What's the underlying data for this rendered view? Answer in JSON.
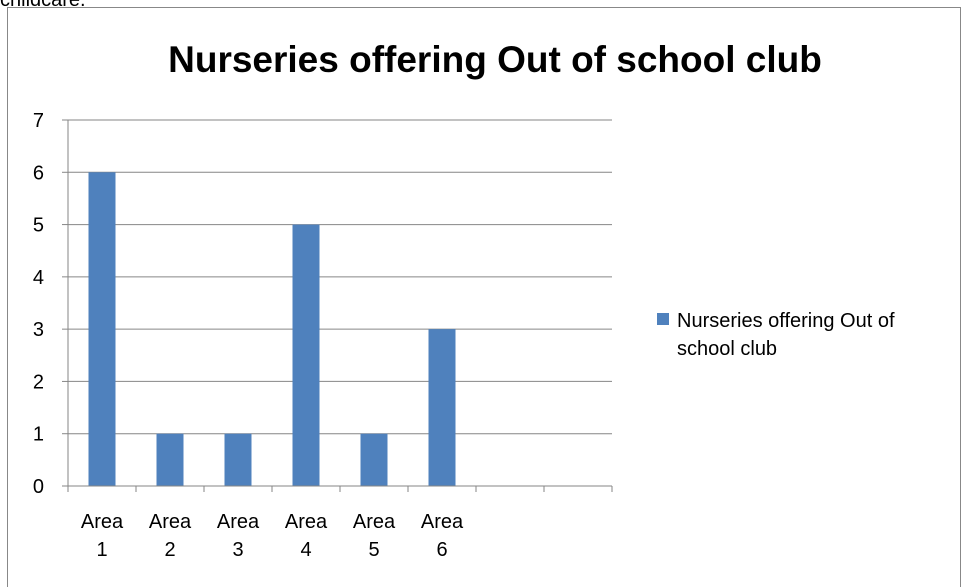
{
  "page_top_text": "childcare.",
  "chart_data": {
    "type": "bar",
    "title": "Nurseries offering Out of school club",
    "categories": [
      [
        "Area",
        "1"
      ],
      [
        "Area",
        "2"
      ],
      [
        "Area",
        "3"
      ],
      [
        "Area",
        "4"
      ],
      [
        "Area",
        "5"
      ],
      [
        "Area",
        "6"
      ],
      [
        "",
        ""
      ],
      [
        "",
        ""
      ]
    ],
    "series": [
      {
        "name": "Nurseries offering Out of school club",
        "values": [
          6,
          1,
          1,
          5,
          1,
          3,
          null,
          null
        ],
        "color": "#4F81BD"
      }
    ],
    "ylim": [
      0,
      7
    ],
    "yticks": [
      0,
      1,
      2,
      3,
      4,
      5,
      6,
      7
    ],
    "grid": true,
    "legend_position": "right",
    "legend_lines": [
      "Nurseries offering Out of",
      "school club"
    ]
  }
}
